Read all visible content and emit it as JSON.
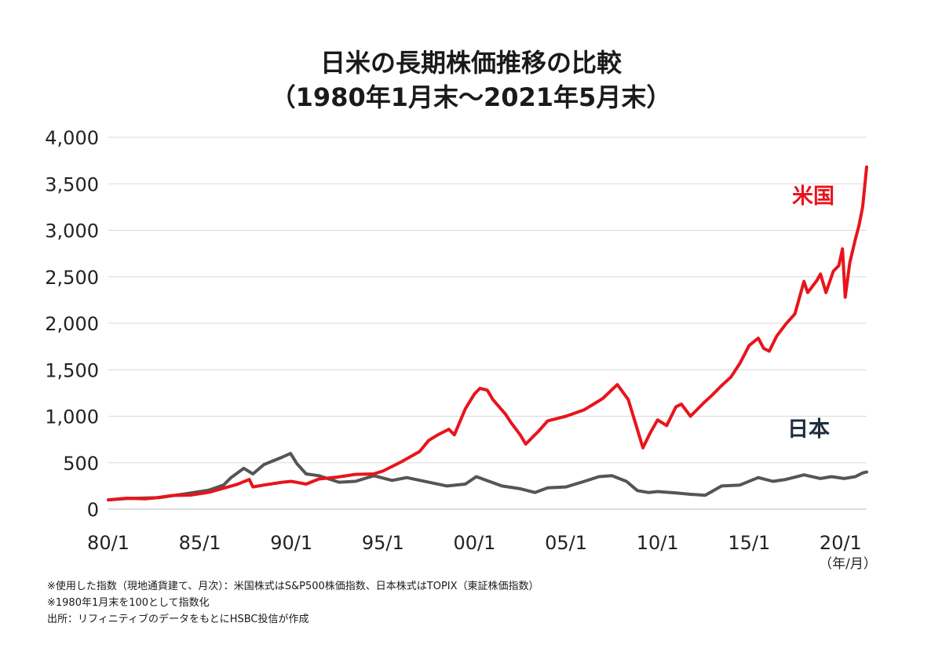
{
  "chart_data": {
    "type": "line",
    "title": "日米の長期株価推移の比較",
    "subtitle": "（1980年1月末～2021年5月末）",
    "xlabel": "",
    "x_unit": "（年/月）",
    "ylabel": "",
    "ylim": [
      0,
      4000
    ],
    "xlim": [
      1980.0,
      2021.42
    ],
    "grid": "horizontal",
    "y_ticks": [
      "0",
      "500",
      "1,000",
      "1,500",
      "2,000",
      "2,500",
      "3,000",
      "3,500",
      "4,000"
    ],
    "x_ticks": [
      "80/1",
      "85/1",
      "90/1",
      "95/1",
      "00/1",
      "05/1",
      "10/1",
      "15/1",
      "20/1"
    ],
    "x_tick_values": [
      1980,
      1985,
      1990,
      1995,
      2000,
      2005,
      2010,
      2015,
      2020
    ],
    "series": [
      {
        "name": "米国",
        "color": "#e8141b",
        "label_position": "upper-right",
        "x": [
          1980.0,
          1981.0,
          1982.0,
          1982.6,
          1983.5,
          1984.5,
          1985.5,
          1987.0,
          1987.7,
          1987.9,
          1988.5,
          1989.5,
          1990.0,
          1990.8,
          1991.5,
          1992.5,
          1993.5,
          1994.5,
          1995.0,
          1996.0,
          1997.0,
          1997.5,
          1998.0,
          1998.6,
          1998.9,
          1999.5,
          2000.0,
          2000.3,
          2000.7,
          2001.0,
          2001.7,
          2002.0,
          2002.5,
          2002.8,
          2003.5,
          2004.0,
          2005.0,
          2006.0,
          2007.0,
          2007.8,
          2008.4,
          2008.8,
          2009.2,
          2009.6,
          2010.0,
          2010.5,
          2011.0,
          2011.3,
          2011.8,
          2012.5,
          2013.0,
          2013.5,
          2014.0,
          2014.5,
          2015.0,
          2015.5,
          2015.8,
          2016.1,
          2016.5,
          2017.0,
          2017.5,
          2018.0,
          2018.2,
          2018.7,
          2018.9,
          2019.2,
          2019.6,
          2019.9,
          2020.1,
          2020.25,
          2020.5,
          2020.8,
          2021.0,
          2021.2,
          2021.42
        ],
        "y": [
          100,
          118,
          112,
          122,
          148,
          152,
          182,
          265,
          320,
          240,
          260,
          290,
          300,
          270,
          325,
          345,
          375,
          380,
          410,
          510,
          620,
          740,
          800,
          860,
          800,
          1080,
          1240,
          1300,
          1280,
          1180,
          1020,
          930,
          800,
          700,
          840,
          950,
          1000,
          1070,
          1190,
          1340,
          1180,
          920,
          660,
          820,
          960,
          900,
          1100,
          1130,
          1000,
          1140,
          1230,
          1330,
          1420,
          1570,
          1760,
          1840,
          1730,
          1700,
          1860,
          1990,
          2100,
          2450,
          2330,
          2460,
          2530,
          2330,
          2560,
          2620,
          2800,
          2280,
          2650,
          2900,
          3050,
          3250,
          3680
        ]
      },
      {
        "name": "日本",
        "color": "#555555",
        "label_position": "right",
        "x": [
          1980.0,
          1981.0,
          1982.0,
          1982.8,
          1983.5,
          1984.5,
          1985.5,
          1986.3,
          1986.7,
          1987.4,
          1987.9,
          1988.5,
          1989.0,
          1989.5,
          1989.95,
          1990.3,
          1990.8,
          1991.5,
          1992.6,
          1993.5,
          1994.5,
          1995.5,
          1996.3,
          1997.5,
          1998.5,
          1999.5,
          2000.1,
          2000.8,
          2001.5,
          2002.5,
          2003.3,
          2004.0,
          2005.0,
          2006.0,
          2006.8,
          2007.5,
          2008.3,
          2008.9,
          2009.5,
          2010.0,
          2011.0,
          2011.8,
          2012.6,
          2013.5,
          2014.5,
          2015.5,
          2016.3,
          2017.0,
          2018.0,
          2018.9,
          2019.5,
          2020.2,
          2020.8,
          2021.2,
          2021.42
        ],
        "y": [
          100,
          115,
          120,
          125,
          145,
          175,
          205,
          260,
          340,
          440,
          380,
          480,
          520,
          560,
          600,
          490,
          380,
          360,
          290,
          300,
          360,
          310,
          340,
          290,
          250,
          270,
          350,
          300,
          250,
          220,
          180,
          230,
          240,
          300,
          350,
          360,
          300,
          200,
          180,
          190,
          175,
          160,
          150,
          250,
          260,
          340,
          300,
          320,
          370,
          330,
          350,
          330,
          350,
          390,
          400
        ]
      }
    ]
  },
  "notes": [
    "※使用した指数（現地通貨建て、月次）：米国株式はS&P500株価指数、日本株式はTOPIX（東証株価指数）",
    "※1980年1月末を100として指数化",
    "出所：リフィニティブのデータをもとにHSBC投信が作成"
  ]
}
